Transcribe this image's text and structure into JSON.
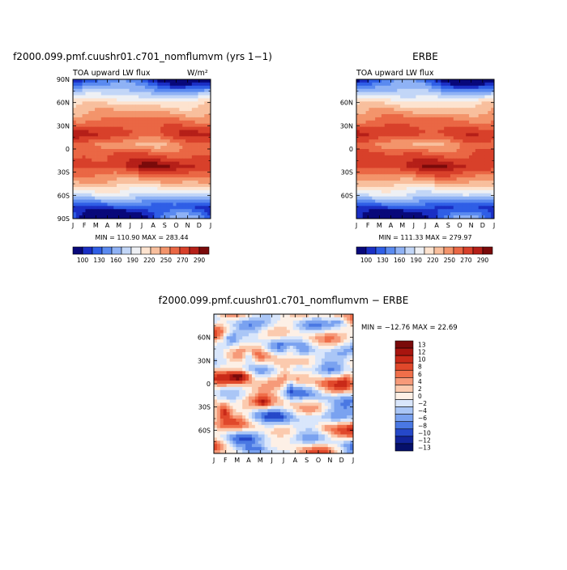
{
  "panels": [
    {
      "id": "model",
      "title": "f2000.099.pmf.cuushr01.c701_nomflumvm (yrs 1−1)",
      "left_label": "TOA upward LW flux",
      "right_label": "W/m²",
      "stats": "MIN = 110.90  MAX = 283.44"
    },
    {
      "id": "obs",
      "title": "ERBE",
      "left_label": "TOA upward LW flux",
      "right_label": "",
      "stats": "MIN = 111.33  MAX = 279.97"
    },
    {
      "id": "diff",
      "title": "f2000.099.pmf.cuushr01.c701_nomflumvm − ERBE",
      "left_label": "",
      "right_label": "",
      "stats": "MIN = −12.76  MAX =  22.69"
    }
  ],
  "chart_data": [
    {
      "type": "heatmap",
      "panel": "model",
      "title": "f2000.099.pmf.cuushr01.c701_nomflumvm (yrs 1−1)",
      "variable": "TOA upward LW flux",
      "units": "W/m²",
      "x_ticks": [
        "J",
        "F",
        "M",
        "A",
        "M",
        "J",
        "J",
        "A",
        "S",
        "O",
        "N",
        "D",
        "J"
      ],
      "y_ticks": [
        "90N",
        "60N",
        "30N",
        "0",
        "30S",
        "60S",
        "90S"
      ],
      "ylim": [
        -90,
        90
      ],
      "min": 110.9,
      "max": 283.44,
      "colorbar_labels": [
        "100",
        "130",
        "160",
        "190",
        "220",
        "250",
        "270",
        "290"
      ]
    },
    {
      "type": "heatmap",
      "panel": "obs",
      "title": "ERBE",
      "variable": "TOA upward LW flux",
      "x_ticks": [
        "J",
        "F",
        "M",
        "A",
        "M",
        "J",
        "J",
        "A",
        "S",
        "O",
        "N",
        "D",
        "J"
      ],
      "y_ticks": [
        "60N",
        "30N",
        "0",
        "30S",
        "60S"
      ],
      "ylim": [
        -90,
        90
      ],
      "min": 111.33,
      "max": 279.97,
      "colorbar_labels": [
        "100",
        "130",
        "160",
        "190",
        "220",
        "250",
        "270",
        "290"
      ]
    },
    {
      "type": "heatmap",
      "panel": "diff",
      "title": "f2000.099.pmf.cuushr01.c701_nomflumvm − ERBE",
      "x_ticks": [
        "J",
        "F",
        "M",
        "A",
        "M",
        "J",
        "J",
        "A",
        "S",
        "O",
        "N",
        "D",
        "J"
      ],
      "y_ticks": [
        "60N",
        "30N",
        "0",
        "30S",
        "60S"
      ],
      "ylim": [
        -90,
        90
      ],
      "min": -12.76,
      "max": 22.69,
      "colorbar_labels": [
        "13",
        "12",
        "10",
        "8",
        "6",
        "4",
        "2",
        "0",
        "−2",
        "−4",
        "−6",
        "−8",
        "−10",
        "−12",
        "−13"
      ]
    }
  ],
  "palettes": {
    "sequential": [
      "#08087a",
      "#1a2fc4",
      "#2f5ee6",
      "#5a8af0",
      "#8fb2f5",
      "#c2d6f7",
      "#eef0f4",
      "#fde3cf",
      "#f8bf9d",
      "#f3946b",
      "#ea6744",
      "#d8402a",
      "#b51f18",
      "#7a0a0a"
    ],
    "diverging": [
      "#7a0a0a",
      "#a8150f",
      "#c92a19",
      "#e0482b",
      "#f06f4a",
      "#f69a79",
      "#fbcaae",
      "#fdf0e6",
      "#d9e6fb",
      "#aac6f6",
      "#7aa2f0",
      "#4a78e3",
      "#2548c9",
      "#12249a",
      "#06106a"
    ]
  }
}
